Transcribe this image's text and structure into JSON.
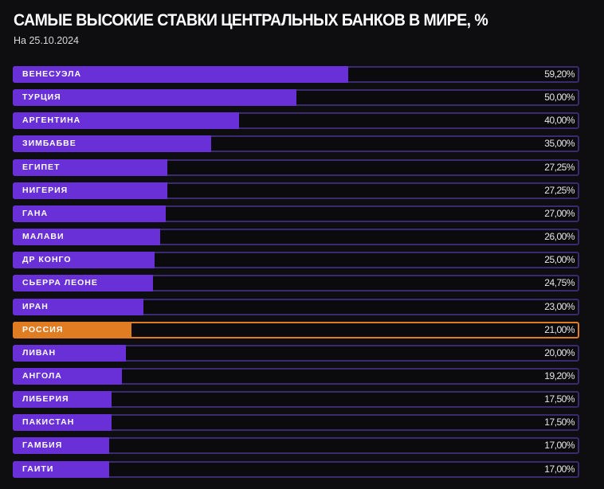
{
  "chart_data": {
    "type": "bar",
    "orientation": "horizontal",
    "title": "САМЫЕ ВЫСОКИЕ СТАВКИ ЦЕНТРАЛЬНЫХ БАНКОВ В МИРЕ, %",
    "subtitle": "На 25.10.2024",
    "xlim": [
      0,
      100
    ],
    "grid": false,
    "colors": {
      "default": "#6a30d8",
      "highlight": "#e07d22",
      "track_border": "#3a2a70",
      "highlight_border": "#e07d22"
    },
    "categories": [
      "ВЕНЕСУЭЛА",
      "ТУРЦИЯ",
      "АРГЕНТИНА",
      "ЗИМБАБВЕ",
      "ЕГИПЕТ",
      "НИГЕРИЯ",
      "ГАНА",
      "МАЛАВИ",
      "ДР КОНГО",
      "СЬЕРРА ЛЕОНЕ",
      "ИРАН",
      "РОССИЯ",
      "ЛИВАН",
      "АНГОЛА",
      "ЛИБЕРИЯ",
      "ПАКИСТАН",
      "ГАМБИЯ",
      "ГАИТИ"
    ],
    "values": [
      59.2,
      50,
      40,
      35,
      27.25,
      27.25,
      27,
      26,
      25,
      24.75,
      23,
      21,
      20,
      19.2,
      17.5,
      17.5,
      17,
      17
    ],
    "value_labels": [
      "59,20%",
      "50,00%",
      "40,00%",
      "35,00%",
      "27,25%",
      "27,25%",
      "27,00%",
      "26,00%",
      "25,00%",
      "24,75%",
      "23,00%",
      "21,00%",
      "20,00%",
      "19,20%",
      "17,50%",
      "17,50%",
      "17,00%",
      "17,00%"
    ],
    "highlight": "РОССИЯ"
  }
}
